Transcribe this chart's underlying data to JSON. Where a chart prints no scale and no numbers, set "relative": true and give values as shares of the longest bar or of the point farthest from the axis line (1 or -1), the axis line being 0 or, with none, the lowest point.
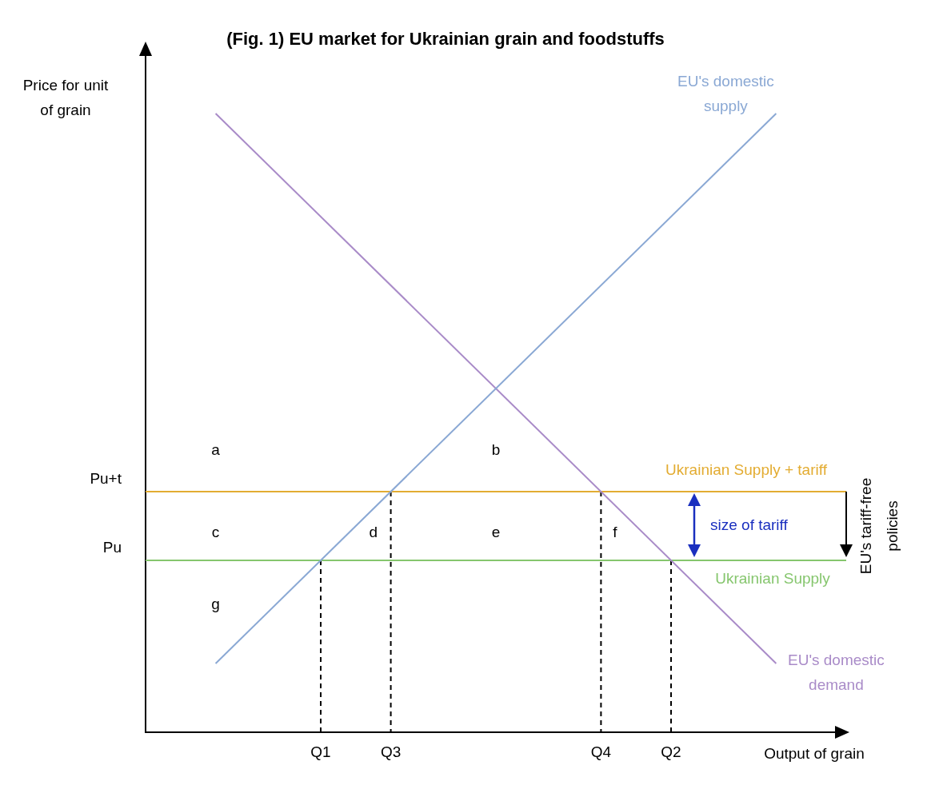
{
  "chart_data": {
    "type": "line",
    "relative": true,
    "title": "(Fig. 1) EU market for Ukrainian grain and foodstuffs",
    "xlabel": "Output of grain",
    "ylabel": "Price for unit of grain",
    "categories": [
      null,
      null,
      null,
      null,
      null,
      "Q1",
      null,
      "Q3",
      null,
      null,
      null,
      null,
      null,
      "Q4",
      null,
      "Q2",
      null,
      null,
      null,
      null,
      null
    ],
    "grid": false,
    "legend": false,
    "marker": "none",
    "line_style": "solid",
    "series": [
      {
        "name": "EU's domestic supply",
        "color": "#8aa8d4",
        "values": [
          null,
          null,
          0.1111,
          null,
          null,
          null,
          null,
          null,
          null,
          null,
          null,
          null,
          null,
          null,
          null,
          null,
          null,
          null,
          1,
          null,
          null
        ]
      },
      {
        "name": "EU's domestic demand",
        "color": "#a98bc8",
        "values": [
          null,
          null,
          1,
          null,
          null,
          null,
          null,
          null,
          null,
          null,
          null,
          null,
          null,
          null,
          null,
          null,
          null,
          null,
          0.1111,
          null,
          null
        ]
      },
      {
        "name": "Ukrainian Supply + tariff",
        "color": "#e3ac32",
        "values": [
          0.3889,
          null,
          null,
          null,
          null,
          null,
          null,
          null,
          null,
          null,
          null,
          null,
          null,
          null,
          null,
          null,
          null,
          null,
          null,
          null,
          0.3889
        ]
      },
      {
        "name": "Ukrainian Supply",
        "color": "#86c66e",
        "values": [
          0.2778,
          null,
          null,
          null,
          null,
          null,
          null,
          null,
          null,
          null,
          null,
          null,
          null,
          null,
          null,
          null,
          null,
          null,
          null,
          null,
          0.2778
        ]
      },
      {
        "color": "#000000",
        "line_style": "dashed",
        "x": [
          "Q1",
          "Q1"
        ],
        "values": [
          0.2778,
          0
        ]
      },
      {
        "color": "#000000",
        "line_style": "dashed",
        "x": [
          "Q3",
          "Q3"
        ],
        "values": [
          0.3889,
          0
        ]
      },
      {
        "color": "#000000",
        "line_style": "dashed",
        "x": [
          "Q4",
          "Q4"
        ],
        "values": [
          0.3889,
          0
        ]
      },
      {
        "color": "#000000",
        "line_style": "dashed",
        "x": [
          "Q2",
          "Q2"
        ],
        "values": [
          0.2778,
          0
        ]
      }
    ],
    "annotations": [
      "a",
      "b",
      "c",
      "d",
      "e",
      "f",
      "g",
      "size of tariff",
      "EU's tariff-free policies",
      "Pu+t",
      "Pu"
    ]
  }
}
